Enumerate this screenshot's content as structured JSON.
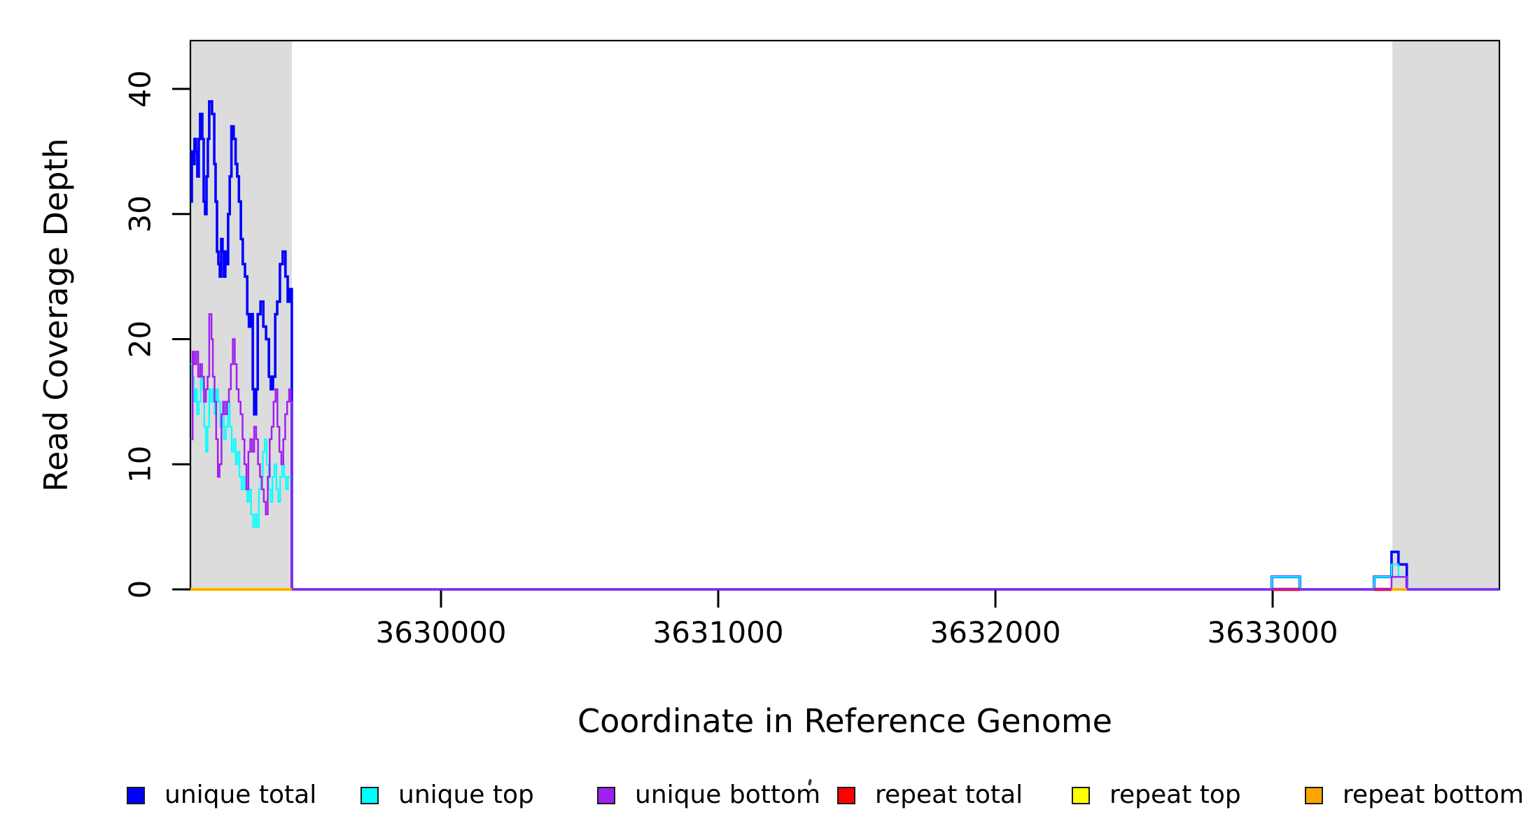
{
  "chart_data": {
    "type": "line",
    "step": true,
    "title": "",
    "xlabel": "Coordinate in Reference Genome",
    "ylabel": "Read Coverage Depth",
    "xlim": [
      3629096,
      3633818
    ],
    "ylim": [
      0,
      43.9
    ],
    "x_ticks": [
      3630000,
      3631000,
      3632000,
      3633000
    ],
    "y_ticks": [
      0,
      10,
      20,
      30,
      40
    ],
    "grid": false,
    "background": "#ffffff",
    "shaded_region_color": "#dcdcdc",
    "shaded_regions": [
      {
        "name": "repeat-region-left",
        "from": 3629096,
        "to": 3629462
      },
      {
        "name": "repeat-region-right",
        "from": 3633432,
        "to": 3633818
      }
    ],
    "legend": {
      "position": "bottom",
      "entries": [
        {
          "label": "unique total",
          "color": "#0000ff"
        },
        {
          "label": "unique top",
          "color": "#00ffff"
        },
        {
          "label": "unique bottom",
          "color": "#a020f0"
        },
        {
          "label": "repeat total",
          "color": "#ff0000"
        },
        {
          "label": "repeat top",
          "color": "#ffff00"
        },
        {
          "label": "repeat bottom",
          "color": "#ffa500"
        }
      ]
    },
    "series": [
      {
        "name": "unique total",
        "color": "#0000ff",
        "line_width": 3.6,
        "end": 3633818,
        "points": [
          [
            3629096,
            31
          ],
          [
            3629101,
            35
          ],
          [
            3629106,
            34
          ],
          [
            3629111,
            36
          ],
          [
            3629116,
            35
          ],
          [
            3629121,
            33
          ],
          [
            3629126,
            36
          ],
          [
            3629131,
            38
          ],
          [
            3629139,
            36
          ],
          [
            3629144,
            31
          ],
          [
            3629149,
            30
          ],
          [
            3629154,
            33
          ],
          [
            3629159,
            36
          ],
          [
            3629164,
            39
          ],
          [
            3629174,
            38
          ],
          [
            3629182,
            34
          ],
          [
            3629187,
            31
          ],
          [
            3629192,
            27
          ],
          [
            3629197,
            26
          ],
          [
            3629202,
            25
          ],
          [
            3629207,
            28
          ],
          [
            3629212,
            27
          ],
          [
            3629217,
            25
          ],
          [
            3629222,
            27
          ],
          [
            3629227,
            26
          ],
          [
            3629232,
            30
          ],
          [
            3629238,
            33
          ],
          [
            3629244,
            37
          ],
          [
            3629252,
            36
          ],
          [
            3629259,
            34
          ],
          [
            3629265,
            33
          ],
          [
            3629271,
            31
          ],
          [
            3629278,
            28
          ],
          [
            3629285,
            26
          ],
          [
            3629293,
            25
          ],
          [
            3629301,
            22
          ],
          [
            3629307,
            21
          ],
          [
            3629313,
            22
          ],
          [
            3629321,
            16
          ],
          [
            3629326,
            14
          ],
          [
            3629333,
            16
          ],
          [
            3629339,
            22
          ],
          [
            3629349,
            23
          ],
          [
            3629359,
            21
          ],
          [
            3629369,
            20
          ],
          [
            3629379,
            17
          ],
          [
            3629386,
            16
          ],
          [
            3629394,
            17
          ],
          [
            3629402,
            22
          ],
          [
            3629409,
            23
          ],
          [
            3629419,
            26
          ],
          [
            3629429,
            27
          ],
          [
            3629439,
            25
          ],
          [
            3629447,
            23
          ],
          [
            3629455,
            24
          ],
          [
            3629462,
            0
          ],
          [
            3632997,
            1
          ],
          [
            3633098,
            0
          ],
          [
            3633366,
            1
          ],
          [
            3633429,
            3
          ],
          [
            3633454,
            2
          ],
          [
            3633484,
            0
          ]
        ]
      },
      {
        "name": "unique top",
        "color": "#00ffff",
        "line_width": 2.2,
        "end": 3633818,
        "points": [
          [
            3629096,
            18
          ],
          [
            3629102,
            17
          ],
          [
            3629108,
            15
          ],
          [
            3629114,
            16
          ],
          [
            3629120,
            14
          ],
          [
            3629126,
            15
          ],
          [
            3629133,
            17
          ],
          [
            3629140,
            16
          ],
          [
            3629146,
            13
          ],
          [
            3629152,
            11
          ],
          [
            3629158,
            13
          ],
          [
            3629164,
            16
          ],
          [
            3629170,
            15
          ],
          [
            3629177,
            16
          ],
          [
            3629183,
            14
          ],
          [
            3629190,
            16
          ],
          [
            3629196,
            15
          ],
          [
            3629203,
            13
          ],
          [
            3629210,
            14
          ],
          [
            3629217,
            12
          ],
          [
            3629224,
            13
          ],
          [
            3629231,
            15
          ],
          [
            3629238,
            13
          ],
          [
            3629245,
            11
          ],
          [
            3629252,
            12
          ],
          [
            3629259,
            10
          ],
          [
            3629266,
            11
          ],
          [
            3629273,
            9
          ],
          [
            3629280,
            8
          ],
          [
            3629287,
            9
          ],
          [
            3629294,
            8
          ],
          [
            3629301,
            7
          ],
          [
            3629308,
            8
          ],
          [
            3629315,
            6
          ],
          [
            3629322,
            5
          ],
          [
            3629329,
            6
          ],
          [
            3629336,
            5
          ],
          [
            3629343,
            8
          ],
          [
            3629350,
            9
          ],
          [
            3629357,
            11
          ],
          [
            3629364,
            12
          ],
          [
            3629371,
            10
          ],
          [
            3629378,
            8
          ],
          [
            3629385,
            7
          ],
          [
            3629392,
            9
          ],
          [
            3629399,
            10
          ],
          [
            3629406,
            8
          ],
          [
            3629413,
            7
          ],
          [
            3629420,
            9
          ],
          [
            3629427,
            10
          ],
          [
            3629434,
            9
          ],
          [
            3629441,
            8
          ],
          [
            3629448,
            9
          ],
          [
            3629455,
            9
          ],
          [
            3629462,
            0
          ],
          [
            3632997,
            1
          ],
          [
            3633098,
            0
          ],
          [
            3633366,
            1
          ],
          [
            3633429,
            2
          ],
          [
            3633454,
            1
          ],
          [
            3633484,
            0
          ]
        ]
      },
      {
        "name": "repeat total",
        "color": "#ff0000",
        "line_width": 4.6,
        "value": 0,
        "zero_segments": [
          [
            3632997,
            3633098
          ],
          [
            3633366,
            3633429
          ]
        ]
      },
      {
        "name": "repeat top",
        "color": "#ffff00",
        "line_width": 4.6,
        "value": 0,
        "zero_segments": [
          [
            3629096,
            3629462
          ],
          [
            3633429,
            3633484
          ]
        ]
      },
      {
        "name": "unique bottom",
        "color": "#a020f0",
        "line_width": 2.5,
        "end": 3633818,
        "points": [
          [
            3629096,
            12
          ],
          [
            3629104,
            19
          ],
          [
            3629110,
            18
          ],
          [
            3629117,
            19
          ],
          [
            3629124,
            17
          ],
          [
            3629131,
            18
          ],
          [
            3629138,
            17
          ],
          [
            3629145,
            15
          ],
          [
            3629152,
            16
          ],
          [
            3629158,
            17
          ],
          [
            3629164,
            22
          ],
          [
            3629172,
            20
          ],
          [
            3629177,
            17
          ],
          [
            3629183,
            15
          ],
          [
            3629189,
            12
          ],
          [
            3629195,
            9
          ],
          [
            3629201,
            10
          ],
          [
            3629208,
            14
          ],
          [
            3629214,
            15
          ],
          [
            3629221,
            14
          ],
          [
            3629228,
            15
          ],
          [
            3629235,
            16
          ],
          [
            3629242,
            18
          ],
          [
            3629249,
            20
          ],
          [
            3629256,
            18
          ],
          [
            3629263,
            16
          ],
          [
            3629270,
            15
          ],
          [
            3629277,
            14
          ],
          [
            3629284,
            12
          ],
          [
            3629291,
            10
          ],
          [
            3629298,
            8
          ],
          [
            3629305,
            11
          ],
          [
            3629312,
            12
          ],
          [
            3629319,
            11
          ],
          [
            3629326,
            13
          ],
          [
            3629333,
            12
          ],
          [
            3629340,
            10
          ],
          [
            3629347,
            9
          ],
          [
            3629354,
            8
          ],
          [
            3629361,
            7
          ],
          [
            3629368,
            6
          ],
          [
            3629375,
            9
          ],
          [
            3629382,
            12
          ],
          [
            3629389,
            13
          ],
          [
            3629396,
            15
          ],
          [
            3629403,
            16
          ],
          [
            3629410,
            13
          ],
          [
            3629417,
            11
          ],
          [
            3629424,
            10
          ],
          [
            3629431,
            12
          ],
          [
            3629438,
            14
          ],
          [
            3629445,
            15
          ],
          [
            3629452,
            16
          ],
          [
            3629458,
            15
          ],
          [
            3629462,
            0
          ],
          [
            3633429,
            1
          ],
          [
            3633484,
            0
          ]
        ]
      },
      {
        "name": "repeat bottom",
        "color": "#ffa500",
        "line_width": 3.6,
        "value": 0,
        "zero_segments": [
          [
            3629096,
            3629462
          ],
          [
            3633429,
            3633484
          ]
        ]
      }
    ]
  },
  "axes": {
    "x_tick_labels": [
      "3630000",
      "3631000",
      "3632000",
      "3633000"
    ],
    "y_tick_labels": [
      "0",
      "10",
      "20",
      "30",
      "40"
    ]
  },
  "labels": {
    "x_axis_title": "Coordinate in Reference Genome",
    "y_axis_title": "Read Coverage Depth"
  },
  "stray_mark": "."
}
